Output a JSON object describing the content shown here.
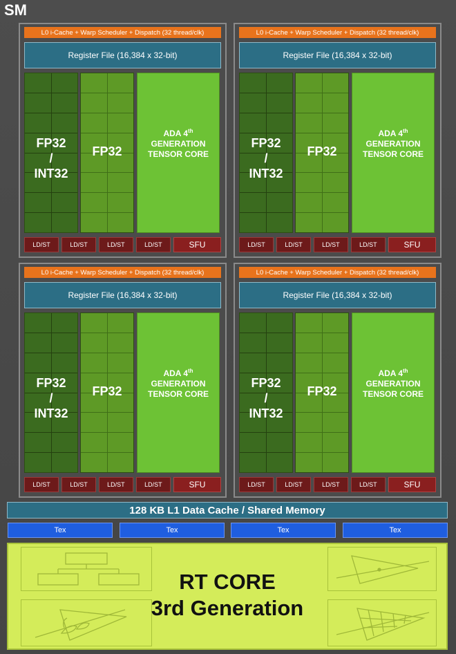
{
  "sm_label": "SM",
  "quadrants": [
    {
      "warp_scheduler": "L0 i-Cache + Warp Scheduler + Dispatch (32 thread/clk)",
      "register_file": "Register File (16,384 x 32-bit)",
      "fp_int_line1": "FP32",
      "fp_int_line2": "/",
      "fp_int_line3": "INT32",
      "fp32": "FP32",
      "tensor_line1": "ADA 4",
      "tensor_sup": "th",
      "tensor_line2": "GENERATION",
      "tensor_line3": "TENSOR CORE",
      "ldst": [
        "LD/ST",
        "LD/ST",
        "LD/ST",
        "LD/ST"
      ],
      "sfu": "SFU"
    },
    {
      "warp_scheduler": "L0 i-Cache + Warp Scheduler + Dispatch (32 thread/clk)",
      "register_file": "Register File (16,384 x 32-bit)",
      "fp_int_line1": "FP32",
      "fp_int_line2": "/",
      "fp_int_line3": "INT32",
      "fp32": "FP32",
      "tensor_line1": "ADA 4",
      "tensor_sup": "th",
      "tensor_line2": "GENERATION",
      "tensor_line3": "TENSOR CORE",
      "ldst": [
        "LD/ST",
        "LD/ST",
        "LD/ST",
        "LD/ST"
      ],
      "sfu": "SFU"
    },
    {
      "warp_scheduler": "L0 i-Cache + Warp Scheduler + Dispatch (32 thread/clk)",
      "register_file": "Register File (16,384 x 32-bit)",
      "fp_int_line1": "FP32",
      "fp_int_line2": "/",
      "fp_int_line3": "INT32",
      "fp32": "FP32",
      "tensor_line1": "ADA 4",
      "tensor_sup": "th",
      "tensor_line2": "GENERATION",
      "tensor_line3": "TENSOR CORE",
      "ldst": [
        "LD/ST",
        "LD/ST",
        "LD/ST",
        "LD/ST"
      ],
      "sfu": "SFU"
    },
    {
      "warp_scheduler": "L0 i-Cache + Warp Scheduler + Dispatch (32 thread/clk)",
      "register_file": "Register File (16,384 x 32-bit)",
      "fp_int_line1": "FP32",
      "fp_int_line2": "/",
      "fp_int_line3": "INT32",
      "fp32": "FP32",
      "tensor_line1": "ADA 4",
      "tensor_sup": "th",
      "tensor_line2": "GENERATION",
      "tensor_line3": "TENSOR CORE",
      "ldst": [
        "LD/ST",
        "LD/ST",
        "LD/ST",
        "LD/ST"
      ],
      "sfu": "SFU"
    }
  ],
  "l1_cache": "128 KB L1 Data Cache / Shared Memory",
  "tex_units": [
    "Tex",
    "Tex",
    "Tex",
    "Tex"
  ],
  "rt_core": {
    "line1": "RT CORE",
    "line2": "3rd Generation"
  },
  "colors": {
    "warp_scheduler": "#e8731c",
    "register_file": "#2c6e85",
    "fp_int": "#3b6b1f",
    "fp32": "#5e9a26",
    "tensor_core": "#6dc235",
    "ldst": "#6d1a1a",
    "sfu": "#8a1f1f",
    "tex": "#1f5ee0",
    "rt_core": "#d4ec5a"
  }
}
